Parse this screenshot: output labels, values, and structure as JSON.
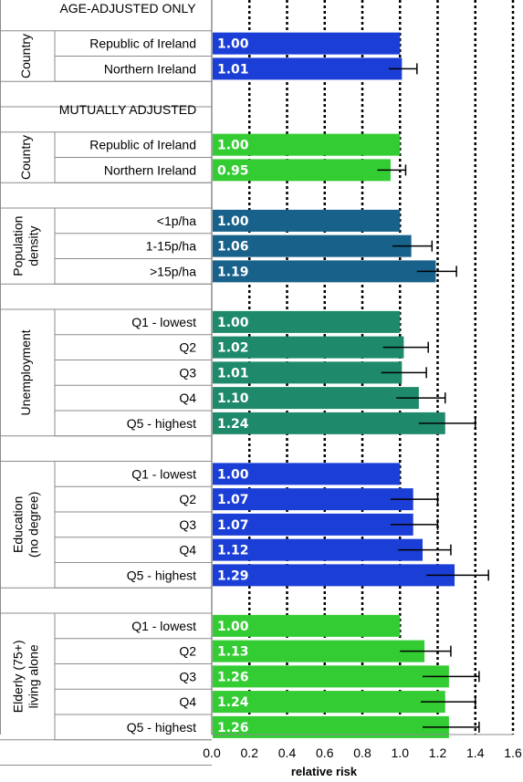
{
  "chart_data": {
    "type": "bar",
    "orientation": "horizontal",
    "xlabel": "relative risk",
    "xlim": [
      0,
      1.6
    ],
    "xticks": [
      "0.0",
      "0.2",
      "0.4",
      "0.6",
      "0.8",
      "1.0",
      "1.2",
      "1.4",
      "1.6"
    ],
    "gridlines": "vertical dotted at every tick",
    "sections": [
      {
        "title": "AGE-ADJUSTED ONLY",
        "groups": [
          {
            "name": "Country",
            "color": "#1b3fd6",
            "rows": [
              {
                "label": "Republic of Ireland",
                "value": 1.0,
                "value_label": "1.00",
                "ci": null
              },
              {
                "label": "Northern Ireland",
                "value": 1.01,
                "value_label": "1.01",
                "ci": [
                  0.94,
                  1.09
                ]
              }
            ]
          }
        ]
      },
      {
        "title": "MUTUALLY ADJUSTED",
        "groups": [
          {
            "name": "Country",
            "color": "#33cc33",
            "rows": [
              {
                "label": "Republic of Ireland",
                "value": 1.0,
                "value_label": "1.00",
                "ci": null
              },
              {
                "label": "Northern Ireland",
                "value": 0.95,
                "value_label": "0.95",
                "ci": [
                  0.88,
                  1.03
                ]
              }
            ]
          },
          {
            "name": "Population density",
            "color": "#17618a",
            "rows": [
              {
                "label": "<1p/ha",
                "value": 1.0,
                "value_label": "1.00",
                "ci": null
              },
              {
                "label": "1-15p/ha",
                "value": 1.06,
                "value_label": "1.06",
                "ci": [
                  0.96,
                  1.17
                ]
              },
              {
                "label": ">15p/ha",
                "value": 1.19,
                "value_label": "1.19",
                "ci": [
                  1.09,
                  1.3
                ]
              }
            ]
          },
          {
            "name": "Unemployment",
            "color": "#1f8a6b",
            "rows": [
              {
                "label": "Q1 - lowest",
                "value": 1.0,
                "value_label": "1.00",
                "ci": null
              },
              {
                "label": "Q2",
                "value": 1.02,
                "value_label": "1.02",
                "ci": [
                  0.91,
                  1.15
                ]
              },
              {
                "label": "Q3",
                "value": 1.01,
                "value_label": "1.01",
                "ci": [
                  0.9,
                  1.14
                ]
              },
              {
                "label": "Q4",
                "value": 1.1,
                "value_label": "1.10",
                "ci": [
                  0.98,
                  1.24
                ]
              },
              {
                "label": "Q5 - highest",
                "value": 1.24,
                "value_label": "1.24",
                "ci": [
                  1.1,
                  1.4
                ]
              }
            ]
          },
          {
            "name": "Education (no degree)",
            "color": "#1b3fd6",
            "rows": [
              {
                "label": "Q1 - lowest",
                "value": 1.0,
                "value_label": "1.00",
                "ci": null
              },
              {
                "label": "Q2",
                "value": 1.07,
                "value_label": "1.07",
                "ci": [
                  0.95,
                  1.2
                ]
              },
              {
                "label": "Q3",
                "value": 1.07,
                "value_label": "1.07",
                "ci": [
                  0.95,
                  1.2
                ]
              },
              {
                "label": "Q4",
                "value": 1.12,
                "value_label": "1.12",
                "ci": [
                  0.99,
                  1.27
                ]
              },
              {
                "label": "Q5 - highest",
                "value": 1.29,
                "value_label": "1.29",
                "ci": [
                  1.14,
                  1.47
                ]
              }
            ]
          },
          {
            "name": "Elderly (75+) living alone",
            "color": "#33cc33",
            "rows": [
              {
                "label": "Q1 - lowest",
                "value": 1.0,
                "value_label": "1.00",
                "ci": null
              },
              {
                "label": "Q2",
                "value": 1.13,
                "value_label": "1.13",
                "ci": [
                  1.0,
                  1.27
                ]
              },
              {
                "label": "Q3",
                "value": 1.26,
                "value_label": "1.26",
                "ci": [
                  1.12,
                  1.42
                ]
              },
              {
                "label": "Q4",
                "value": 1.24,
                "value_label": "1.24",
                "ci": [
                  1.11,
                  1.4
                ]
              },
              {
                "label": "Q5 - highest",
                "value": 1.26,
                "value_label": "1.26",
                "ci": [
                  1.12,
                  1.42
                ]
              }
            ]
          }
        ]
      }
    ]
  }
}
